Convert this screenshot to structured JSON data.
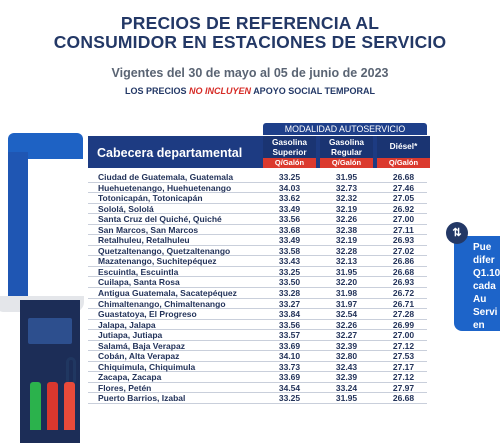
{
  "header": {
    "title_line1": "PRECIOS DE REFERENCIA AL",
    "title_line2": "CONSUMIDOR EN ESTACIONES DE SERVICIO",
    "validity": "Vigentes del 30 de mayo al 05 de junio de 2023",
    "note_pre": "LOS PRECIOS",
    "note_emph": "NO INCLUYEN",
    "note_post": "APOYO SOCIAL TEMPORAL"
  },
  "table": {
    "band": "MODALIDAD AUTOSERVICIO",
    "first_col": "Cabecera departamental",
    "columns": [
      {
        "name_line1": "Gasolina",
        "name_line2": "Superior",
        "unit": "Q/Galón"
      },
      {
        "name_line1": "Gasolina",
        "name_line2": "Regular",
        "unit": "Q/Galón"
      },
      {
        "name_line1": "Diésel*",
        "name_line2": "",
        "unit": "Q/Galón"
      }
    ],
    "rows": [
      {
        "city": "Ciudad de Guatemala, Guatemala",
        "superior": "33.25",
        "regular": "31.95",
        "diesel": "26.68"
      },
      {
        "city": "Huehuetenango, Huehuetenango",
        "superior": "34.03",
        "regular": "32.73",
        "diesel": "27.46"
      },
      {
        "city": "Totonicapán, Totonicapán",
        "superior": "33.62",
        "regular": "32.32",
        "diesel": "27.05"
      },
      {
        "city": "Sololá, Sololá",
        "superior": "33.49",
        "regular": "32.19",
        "diesel": "26.92"
      },
      {
        "city": "Santa Cruz del Quiché, Quiché",
        "superior": "33.56",
        "regular": "32.26",
        "diesel": "27.00"
      },
      {
        "city": "San Marcos, San Marcos",
        "superior": "33.68",
        "regular": "32.38",
        "diesel": "27.11"
      },
      {
        "city": "Retalhuleu, Retalhuleu",
        "superior": "33.49",
        "regular": "32.19",
        "diesel": "26.93"
      },
      {
        "city": "Quetzaltenango, Quetzaltenango",
        "superior": "33.58",
        "regular": "32.28",
        "diesel": "27.02"
      },
      {
        "city": "Mazatenango, Suchitepéquez",
        "superior": "33.43",
        "regular": "32.13",
        "diesel": "26.86"
      },
      {
        "city": "Escuintla, Escuintla",
        "superior": "33.25",
        "regular": "31.95",
        "diesel": "26.68"
      },
      {
        "city": "Cuilapa, Santa Rosa",
        "superior": "33.50",
        "regular": "32.20",
        "diesel": "26.93"
      },
      {
        "city": "Antigua Guatemala, Sacatepéquez",
        "superior": "33.28",
        "regular": "31.98",
        "diesel": "26.72"
      },
      {
        "city": "Chimaltenango, Chimaltenango",
        "superior": "33.27",
        "regular": "31.97",
        "diesel": "26.71"
      },
      {
        "city": "Guastatoya, El Progreso",
        "superior": "33.84",
        "regular": "32.54",
        "diesel": "27.28"
      },
      {
        "city": "Jalapa, Jalapa",
        "superior": "33.56",
        "regular": "32.26",
        "diesel": "26.99"
      },
      {
        "city": "Jutiapa, Jutiapa",
        "superior": "33.57",
        "regular": "32.27",
        "diesel": "27.00"
      },
      {
        "city": "Salamá, Baja Verapaz",
        "superior": "33.69",
        "regular": "32.39",
        "diesel": "27.12"
      },
      {
        "city": "Cobán, Alta Verapaz",
        "superior": "34.10",
        "regular": "32.80",
        "diesel": "27.53"
      },
      {
        "city": "Chiquimula, Chiquimula",
        "superior": "33.73",
        "regular": "32.43",
        "diesel": "27.17"
      },
      {
        "city": "Zacapa, Zacapa",
        "superior": "33.69",
        "regular": "32.39",
        "diesel": "27.12"
      },
      {
        "city": "Flores, Petén",
        "superior": "34.54",
        "regular": "33.24",
        "diesel": "27.97"
      },
      {
        "city": "Puerto Barrios, Izabal",
        "superior": "33.25",
        "regular": "31.95",
        "diesel": "26.68"
      }
    ]
  },
  "side_note": {
    "icon": "up-down-arrows-icon",
    "icon_glyph": "⇅",
    "lines": [
      "Pue",
      "difer",
      "Q1.10",
      "cada",
      "Au",
      "Servi",
      "en"
    ]
  },
  "colors": {
    "navy": "#1d3b82",
    "accent_red": "#db3a2e",
    "blue": "#1d64c9"
  }
}
